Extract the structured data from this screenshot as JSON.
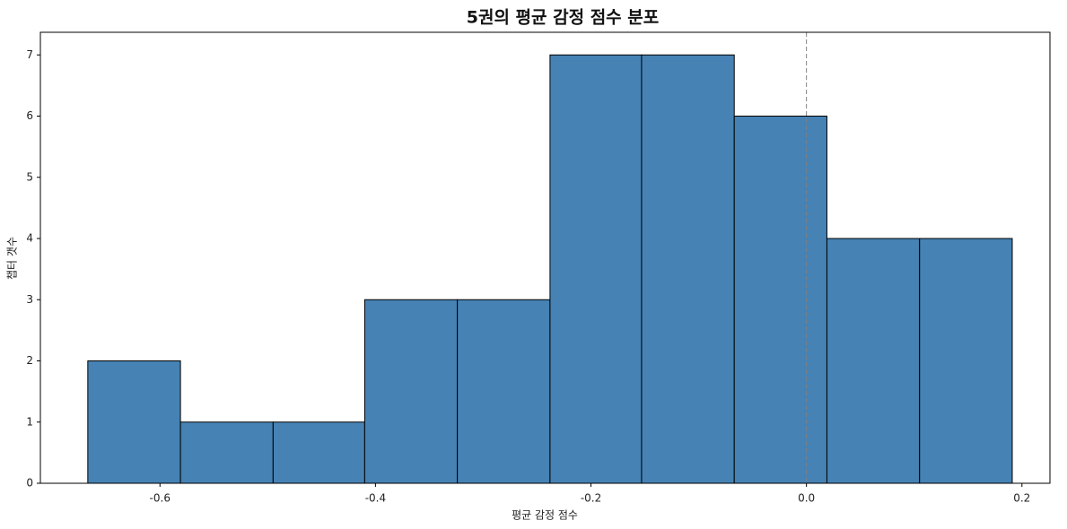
{
  "chart_data": {
    "type": "histogram",
    "title": "5권의 평균 감정 점수 분포",
    "x_label": "평균 감정 점수",
    "y_label": "챕터 갯수",
    "bins": [
      -0.667,
      -0.581,
      -0.495,
      -0.41,
      -0.324,
      -0.238,
      -0.153,
      -0.067,
      0.019,
      0.105,
      0.191
    ],
    "values": [
      2,
      1,
      1,
      3,
      3,
      7,
      7,
      6,
      4,
      4
    ],
    "color": "#4682b4",
    "edge_color": "#000000",
    "xlim": [
      -0.711,
      0.226
    ],
    "xticks": [
      -0.6,
      -0.4,
      -0.2,
      {
        "value": 0,
        "label": "0.0"
      },
      0.2
    ],
    "ylim": [
      0,
      7.37
    ],
    "yticks": [
      0,
      1,
      2,
      3,
      4,
      5,
      6,
      7
    ],
    "reference_line": 0,
    "grid": false
  }
}
